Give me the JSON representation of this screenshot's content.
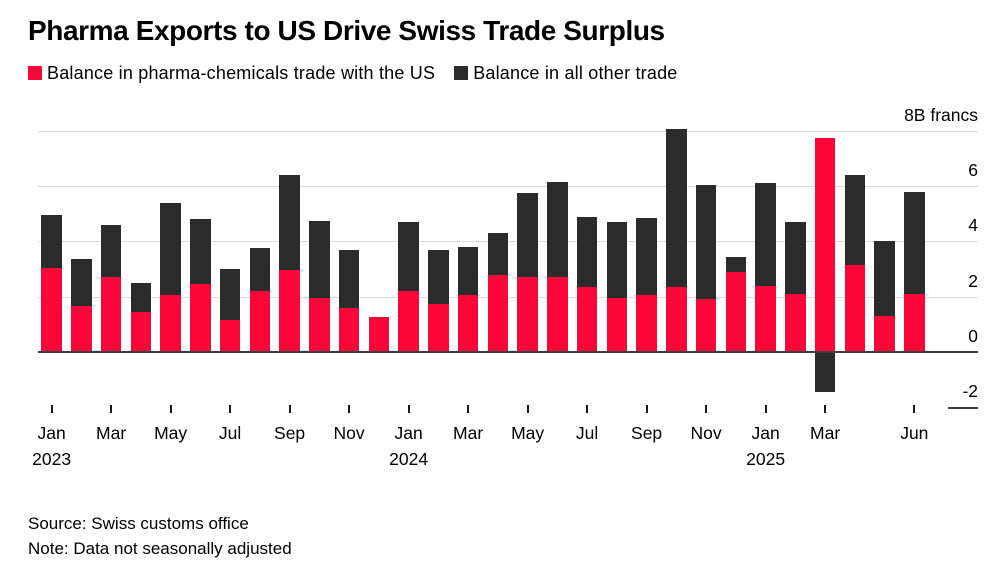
{
  "title": "Pharma Exports to US Drive Swiss Trade Surplus",
  "legend": {
    "items": [
      {
        "label": "Balance in pharma-chemicals trade with the US",
        "color": "#fa0638"
      },
      {
        "label": "Balance in all other trade",
        "color": "#2b2b2b"
      }
    ]
  },
  "footer": {
    "source": "Source: Swiss customs office",
    "note": "Note: Data not seasonally adjusted"
  },
  "colors": {
    "pharma_red": "#fa0638",
    "other_black": "#2b2b2b",
    "gridline": "#dcdcdc",
    "zero_axis": "#3f3f3f"
  },
  "chart_data": {
    "type": "bar",
    "stacked": true,
    "title": "Pharma Exports to US Drive Swiss Trade Surplus",
    "unit_label": "8B francs",
    "xlabel": "",
    "ylabel": "francs (billions)",
    "ylim": [
      -2,
      8
    ],
    "grid_values": [
      8,
      6,
      4,
      2
    ],
    "zero_line": true,
    "legend_position": "top-left",
    "categories": [
      "Jan 2023",
      "Feb 2023",
      "Mar 2023",
      "Apr 2023",
      "May 2023",
      "Jun 2023",
      "Jul 2023",
      "Aug 2023",
      "Sep 2023",
      "Oct 2023",
      "Nov 2023",
      "Dec 2023",
      "Jan 2024",
      "Feb 2024",
      "Mar 2024",
      "Apr 2024",
      "May 2024",
      "Jun 2024",
      "Jul 2024",
      "Aug 2024",
      "Sep 2024",
      "Oct 2024",
      "Nov 2024",
      "Dec 2024",
      "Jan 2025",
      "Feb 2025",
      "Mar 2025",
      "Apr 2025",
      "May 2025",
      "Jun 2025"
    ],
    "series": [
      {
        "name": "Balance in pharma-chemicals trade with the US",
        "color": "#fa0638",
        "values": [
          3.05,
          1.65,
          2.7,
          1.45,
          2.05,
          2.45,
          1.15,
          2.2,
          2.95,
          1.95,
          1.6,
          1.25,
          2.2,
          1.75,
          2.05,
          2.8,
          2.7,
          2.7,
          2.35,
          1.95,
          2.05,
          2.35,
          1.9,
          2.9,
          2.4,
          2.1,
          7.75,
          3.15,
          1.3,
          2.1
        ]
      },
      {
        "name": "Balance in all other trade",
        "color": "#2b2b2b",
        "values": [
          1.9,
          1.7,
          1.9,
          1.05,
          3.35,
          2.35,
          1.85,
          1.55,
          3.45,
          2.8,
          2.1,
          0,
          2.5,
          1.95,
          1.75,
          1.5,
          3.05,
          3.45,
          2.55,
          2.75,
          2.8,
          5.7,
          4.15,
          0.55,
          3.7,
          2.6,
          -1.45,
          3.25,
          2.7,
          3.7
        ]
      }
    ],
    "y_ticks": [
      {
        "value": 8,
        "label": "8B francs"
      },
      {
        "value": 6,
        "label": "6"
      },
      {
        "value": 4,
        "label": "4"
      },
      {
        "value": 2,
        "label": "2"
      },
      {
        "value": 0,
        "label": "0"
      },
      {
        "value": -2,
        "label": "-2"
      }
    ],
    "x_ticks": [
      {
        "index": 0,
        "label": "Jan",
        "year": "2023"
      },
      {
        "index": 2,
        "label": "Mar"
      },
      {
        "index": 4,
        "label": "May"
      },
      {
        "index": 6,
        "label": "Jul"
      },
      {
        "index": 8,
        "label": "Sep"
      },
      {
        "index": 10,
        "label": "Nov"
      },
      {
        "index": 12,
        "label": "Jan",
        "year": "2024"
      },
      {
        "index": 14,
        "label": "Mar"
      },
      {
        "index": 16,
        "label": "May"
      },
      {
        "index": 18,
        "label": "Jul"
      },
      {
        "index": 20,
        "label": "Sep"
      },
      {
        "index": 22,
        "label": "Nov"
      },
      {
        "index": 24,
        "label": "Jan",
        "year": "2025"
      },
      {
        "index": 26,
        "label": "Mar"
      },
      {
        "index": 29,
        "label": "Jun"
      }
    ]
  }
}
